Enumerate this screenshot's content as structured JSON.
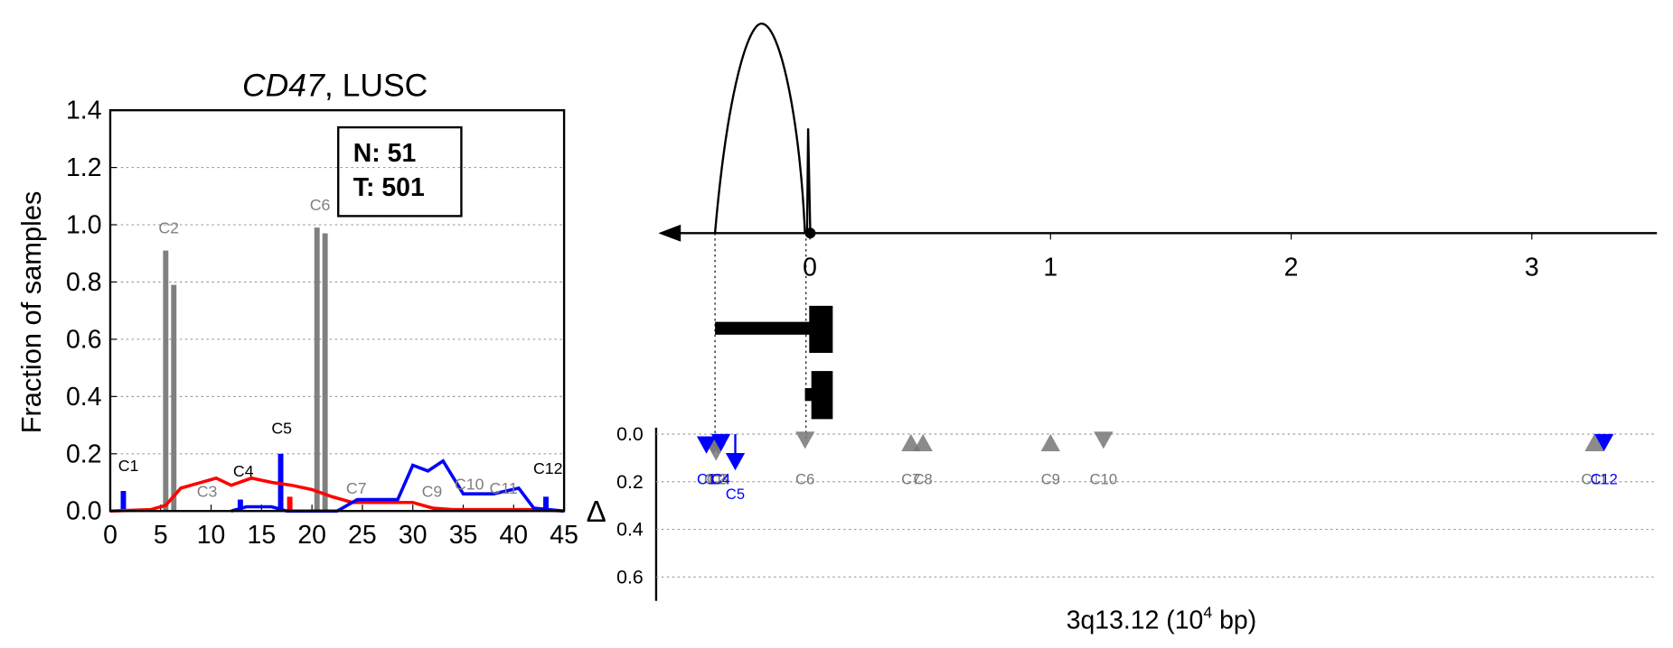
{
  "chart_data": [
    {
      "type": "bar-line",
      "title_gene": "CD47",
      "title_rest": ", LUSC",
      "ylabel": "Fraction of samples",
      "box_lines": [
        "N: 51",
        "T: 501"
      ],
      "xlim": [
        0,
        45
      ],
      "xticks": [
        0,
        5,
        10,
        15,
        20,
        25,
        30,
        35,
        40,
        45
      ],
      "ylim": [
        0,
        1.4
      ],
      "yticks": [
        {
          "value": 0,
          "label": "0.0"
        },
        {
          "value": 0.2,
          "label": "0.2"
        },
        {
          "value": 0.4,
          "label": "0.4"
        },
        {
          "value": 0.6,
          "label": "0.6"
        },
        {
          "value": 0.8,
          "label": "0.8"
        },
        {
          "value": 1.0,
          "label": "1.0"
        },
        {
          "value": 1.2,
          "label": "1.2"
        },
        {
          "value": 1.4,
          "label": "1.4"
        }
      ],
      "grid": true,
      "bars": [
        {
          "color": "#808080",
          "x": [
            5.5,
            6.3,
            20.5,
            21.3
          ],
          "values": [
            0.91,
            0.79,
            0.99,
            0.97
          ]
        },
        {
          "color": "#0000ff",
          "x": [
            1.3,
            12.9,
            16.9,
            43.2
          ],
          "values": [
            0.07,
            0.04,
            0.2,
            0.05
          ]
        },
        {
          "color": "#ff0000",
          "x": [
            17.8
          ],
          "values": [
            0.05
          ]
        }
      ],
      "series": [
        {
          "color": "#ff0000",
          "x": [
            0,
            4,
            5.5,
            7,
            9,
            10.5,
            12,
            14,
            16,
            18,
            20,
            22,
            24,
            26,
            28,
            30,
            32,
            34,
            36,
            38,
            40,
            42,
            45
          ],
          "values": [
            0,
            0.005,
            0.02,
            0.08,
            0.1,
            0.115,
            0.09,
            0.115,
            0.1,
            0.09,
            0.075,
            0.05,
            0.03,
            0.03,
            0.03,
            0.03,
            0.01,
            0.005,
            0.005,
            0.005,
            0.005,
            0.005,
            0
          ]
        },
        {
          "color": "#0000ff",
          "x": [
            12,
            13.5,
            16,
            17.5,
            22.5,
            24.5,
            28.5,
            30,
            31.5,
            33,
            35,
            38,
            40.5,
            42,
            45
          ],
          "values": [
            0,
            0.015,
            0.015,
            0,
            0,
            0.04,
            0.04,
            0.16,
            0.14,
            0.175,
            0.06,
            0.06,
            0.08,
            0.01,
            0
          ]
        }
      ],
      "annotations": [
        {
          "text": "C1",
          "x": 1.8,
          "y": 0.14,
          "color": "#000000"
        },
        {
          "text": "C2",
          "x": 5.8,
          "y": 0.97,
          "color": "#808080"
        },
        {
          "text": "C3",
          "x": 9.6,
          "y": 0.05,
          "color": "#808080"
        },
        {
          "text": "C4",
          "x": 13.2,
          "y": 0.12,
          "color": "#000000"
        },
        {
          "text": "C5",
          "x": 17.0,
          "y": 0.27,
          "color": "#000000"
        },
        {
          "text": "C6",
          "x": 20.8,
          "y": 1.05,
          "color": "#808080"
        },
        {
          "text": "C7",
          "x": 24.4,
          "y": 0.06,
          "color": "#808080"
        },
        {
          "text": "C9",
          "x": 31.9,
          "y": 0.05,
          "color": "#808080"
        },
        {
          "text": "C10",
          "x": 35.6,
          "y": 0.075,
          "color": "#808080"
        },
        {
          "text": "C11",
          "x": 39.0,
          "y": 0.06,
          "color": "#808080"
        },
        {
          "text": "C12",
          "x": 43.4,
          "y": 0.13,
          "color": "#000000"
        }
      ]
    },
    {
      "type": "marker",
      "xlabel_main": "3q13.12 (10",
      "xlabel_sup": "4",
      "xlabel_tail": " bp)",
      "ylabel": "Δ",
      "xlim": [
        -0.63,
        3.52
      ],
      "xticks": [
        0,
        1,
        2,
        3
      ],
      "ylim": [
        0,
        0.7
      ],
      "yticks": [
        {
          "value": 0,
          "label": "0.0"
        },
        {
          "value": 0.2,
          "label": "0.2"
        },
        {
          "value": 0.4,
          "label": "0.4"
        },
        {
          "value": 0.6,
          "label": "0.6"
        }
      ],
      "grid": true,
      "series": [
        {
          "color": "#777777",
          "names": [
            "C1",
            "C2",
            "C3",
            "C4",
            "C6",
            "C7",
            "C8",
            "C9",
            "C10",
            "C11"
          ],
          "direction": [
            "down",
            "down",
            "down",
            "down",
            "down",
            "up",
            "up",
            "up",
            "down",
            "up"
          ],
          "x": [
            -0.4,
            -0.39,
            -0.38,
            -0.37,
            -0.02,
            0.42,
            0.47,
            1.0,
            1.22,
            3.26
          ],
          "values": [
            0.05,
            0.08,
            0.05,
            0.04,
            0.03,
            0.04,
            0.04,
            0.04,
            0.03,
            0.04
          ]
        },
        {
          "color": "#0000ff",
          "names": [
            "C1",
            "C4",
            "C5",
            "C12"
          ],
          "direction": [
            "down",
            "down",
            "down",
            "down"
          ],
          "x": [
            -0.43,
            -0.37,
            -0.31,
            3.3
          ],
          "values": [
            0.05,
            0.04,
            0.12,
            0.04
          ]
        }
      ]
    }
  ]
}
